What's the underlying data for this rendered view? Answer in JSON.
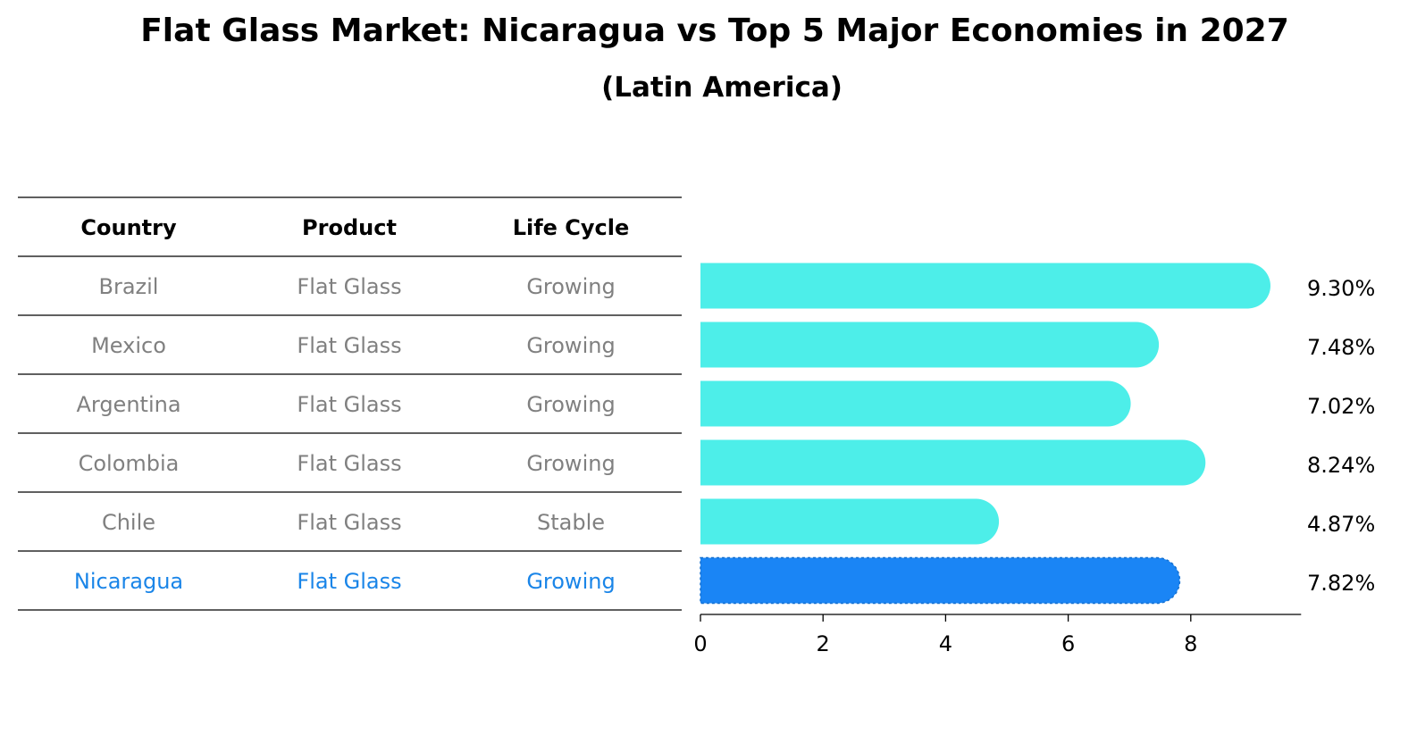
{
  "title": "Flat Glass Market: Nicaragua vs Top 5 Major Economies in 2027",
  "subtitle": "(Latin America)",
  "table": {
    "headers": [
      "Country",
      "Product",
      "Life Cycle"
    ],
    "rows": [
      {
        "country": "Brazil",
        "product": "Flat Glass",
        "life_cycle": "Growing"
      },
      {
        "country": "Mexico",
        "product": "Flat Glass",
        "life_cycle": "Growing"
      },
      {
        "country": "Argentina",
        "product": "Flat Glass",
        "life_cycle": "Growing"
      },
      {
        "country": "Colombia",
        "product": "Flat Glass",
        "life_cycle": "Growing"
      },
      {
        "country": "Chile",
        "product": "Flat Glass",
        "life_cycle": "Stable"
      },
      {
        "country": "Nicaragua",
        "product": "Flat Glass",
        "life_cycle": "Growing"
      }
    ]
  },
  "chart_data": {
    "type": "bar",
    "orientation": "horizontal",
    "categories": [
      "Brazil",
      "Mexico",
      "Argentina",
      "Colombia",
      "Chile",
      "Nicaragua"
    ],
    "values": [
      9.3,
      7.48,
      7.02,
      8.24,
      4.87,
      7.82
    ],
    "value_labels": [
      "9.30%",
      "7.48%",
      "7.02%",
      "8.24%",
      "4.87%",
      "7.82%"
    ],
    "highlight": "Nicaragua",
    "xlim": [
      0,
      9.8
    ],
    "xticks": [
      0,
      2,
      4,
      6,
      8
    ],
    "grid": false,
    "colors": {
      "default": "#4deee9",
      "highlight": "#1a85f5",
      "highlight_text": "#1a85e8",
      "muted_text": "#808080"
    }
  }
}
